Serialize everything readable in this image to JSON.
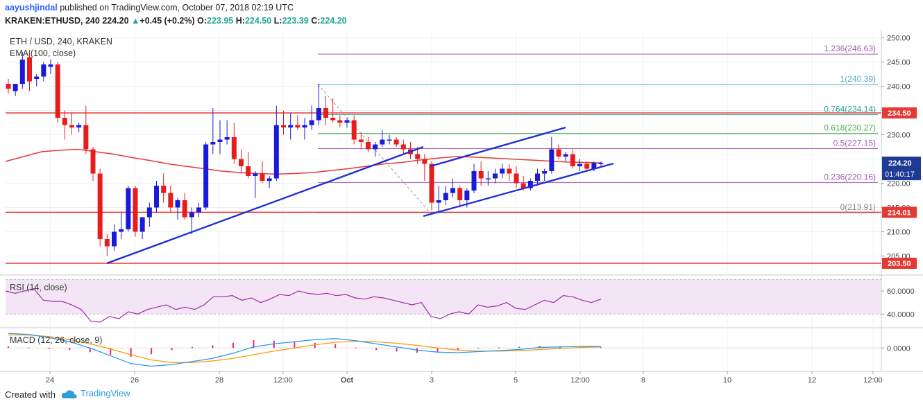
{
  "header": {
    "author": "aayushjindal",
    "published_text": " published on TradingView.com, October 07, 2018 02:19 UTC",
    "symbol_line": "KRAKEN:ETHUSD, 240",
    "last": "224.20",
    "change_arrow": "▲",
    "change": "+0.45 (+0.2%)",
    "o_label": "O:",
    "o_value": "223.95",
    "h_label": "H:",
    "h_value": "224.50",
    "l_label": "L:",
    "l_value": "223.39",
    "c_label": "C:",
    "c_value": "224.20"
  },
  "legend": {
    "main": "ETH / USD, 240, KRAKEN",
    "ema": "EMA (100, close)",
    "rsi": "RSI (14, close)",
    "macd": "MACD (12, 26, close, 9)"
  },
  "footer": {
    "created_with": "Created with",
    "brand": "TradingView"
  },
  "colors": {
    "up_candle": "#1a1adb",
    "down_candle": "#e81c1c",
    "ema": "#e53935",
    "trendline": "#1f2fd6",
    "support": "#e53935",
    "fib": "#a55ab4",
    "rsi": "#a02aa6",
    "rsi_band": "#f3e5f5",
    "macd": "#2196f3",
    "signal": "#ff9800",
    "hist_pos": "#e91e8c",
    "hist_neg": "#e91e8c"
  },
  "chart_data": {
    "type": "candlestick",
    "x_ticks": [
      "24",
      "26",
      "28",
      "12:00",
      "Oct",
      "3",
      "5",
      "12:00",
      "8",
      "10",
      "12",
      "12:00"
    ],
    "y_ticks": [
      "250.00",
      "245.00",
      "240.00",
      "235.00",
      "230.00",
      "225.00",
      "220.00",
      "215.00",
      "210.00",
      "205.00"
    ],
    "ylim": [
      201.5,
      251.5
    ],
    "candles": [
      [
        240.5,
        241.5,
        238.5,
        239.5
      ],
      [
        239.0,
        240.5,
        238.0,
        240.5
      ],
      [
        240.5,
        247.0,
        239.5,
        245.5
      ],
      [
        246.0,
        247.5,
        239.0,
        241.0
      ],
      [
        241.5,
        242.5,
        240.0,
        242.0
      ],
      [
        242.0,
        245.0,
        241.0,
        244.5
      ],
      [
        244.0,
        245.5,
        242.5,
        244.5
      ],
      [
        244.5,
        245.0,
        232.5,
        233.5
      ],
      [
        233.5,
        235.0,
        229.0,
        232.0
      ],
      [
        232.0,
        234.5,
        230.0,
        231.5
      ],
      [
        231.5,
        232.5,
        230.5,
        232.0
      ],
      [
        232.0,
        236.0,
        226.0,
        227.0
      ],
      [
        227.0,
        227.5,
        220.5,
        222.0
      ],
      [
        222.0,
        223.0,
        207.0,
        208.5
      ],
      [
        208.5,
        209.5,
        205.0,
        207.0
      ],
      [
        207.0,
        211.5,
        206.0,
        210.0
      ],
      [
        210.0,
        214.0,
        208.5,
        210.5
      ],
      [
        210.5,
        219.5,
        210.0,
        219.0
      ],
      [
        219.0,
        219.5,
        209.0,
        210.0
      ],
      [
        210.0,
        213.0,
        208.5,
        213.0
      ],
      [
        213.0,
        216.0,
        211.0,
        215.0
      ],
      [
        215.0,
        220.5,
        214.0,
        219.5
      ],
      [
        219.5,
        222.0,
        216.0,
        218.0
      ],
      [
        218.0,
        219.5,
        214.0,
        215.0
      ],
      [
        215.0,
        217.0,
        212.5,
        216.5
      ],
      [
        216.5,
        218.0,
        212.5,
        213.0
      ],
      [
        213.0,
        215.0,
        209.5,
        214.0
      ],
      [
        214.0,
        216.0,
        213.0,
        215.0
      ],
      [
        215.0,
        228.5,
        214.5,
        228.0
      ],
      [
        228.0,
        235.5,
        226.0,
        228.5
      ],
      [
        228.5,
        233.0,
        226.0,
        229.0
      ],
      [
        229.0,
        233.0,
        228.0,
        229.5
      ],
      [
        229.5,
        232.5,
        224.0,
        225.0
      ],
      [
        225.0,
        227.0,
        222.0,
        223.5
      ],
      [
        223.5,
        226.5,
        221.0,
        221.5
      ],
      [
        221.5,
        222.5,
        217.0,
        222.0
      ],
      [
        222.0,
        224.5,
        220.0,
        220.5
      ],
      [
        220.5,
        221.5,
        219.0,
        221.0
      ],
      [
        221.0,
        236.0,
        220.5,
        232.0
      ],
      [
        232.0,
        235.0,
        230.0,
        231.5
      ],
      [
        231.5,
        234.5,
        229.0,
        232.0
      ],
      [
        232.0,
        234.0,
        231.0,
        231.5
      ],
      [
        231.5,
        233.5,
        229.0,
        232.0
      ],
      [
        232.0,
        236.0,
        231.0,
        233.0
      ],
      [
        233.0,
        240.5,
        232.0,
        235.5
      ],
      [
        235.5,
        238.0,
        232.0,
        233.5
      ],
      [
        233.5,
        237.5,
        232.5,
        233.0
      ],
      [
        233.0,
        234.0,
        231.5,
        232.5
      ],
      [
        232.5,
        233.5,
        231.5,
        233.0
      ],
      [
        233.0,
        234.0,
        228.0,
        229.0
      ],
      [
        229.0,
        230.5,
        227.0,
        228.5
      ],
      [
        228.5,
        229.5,
        226.5,
        227.0
      ],
      [
        227.0,
        228.5,
        225.5,
        228.0
      ],
      [
        228.0,
        231.0,
        227.5,
        229.0
      ],
      [
        229.0,
        230.0,
        228.0,
        229.0
      ],
      [
        229.0,
        229.5,
        227.5,
        228.0
      ],
      [
        228.0,
        229.0,
        226.0,
        227.0
      ],
      [
        227.0,
        228.5,
        225.0,
        226.0
      ],
      [
        226.0,
        227.5,
        224.0,
        225.0
      ],
      [
        225.0,
        226.0,
        220.5,
        224.0
      ],
      [
        224.0,
        224.5,
        214.5,
        216.0
      ],
      [
        216.0,
        219.5,
        214.0,
        216.5
      ],
      [
        216.5,
        219.5,
        215.5,
        218.0
      ],
      [
        218.0,
        221.0,
        217.0,
        219.0
      ],
      [
        219.0,
        219.5,
        215.0,
        216.5
      ],
      [
        216.5,
        219.0,
        215.0,
        218.5
      ],
      [
        218.5,
        224.0,
        218.0,
        222.5
      ],
      [
        222.5,
        224.5,
        219.5,
        221.0
      ],
      [
        221.0,
        222.5,
        219.5,
        221.0
      ],
      [
        221.0,
        223.0,
        220.0,
        222.0
      ],
      [
        222.0,
        224.0,
        221.0,
        223.0
      ],
      [
        223.0,
        224.0,
        220.5,
        222.0
      ],
      [
        222.0,
        223.5,
        219.0,
        220.0
      ],
      [
        220.0,
        221.5,
        218.5,
        219.0
      ],
      [
        219.0,
        221.0,
        218.5,
        220.5
      ],
      [
        220.5,
        223.0,
        219.5,
        222.0
      ],
      [
        222.0,
        223.0,
        220.5,
        222.5
      ],
      [
        222.5,
        229.5,
        222.0,
        227.0
      ],
      [
        227.0,
        228.0,
        225.0,
        225.5
      ],
      [
        225.5,
        226.5,
        224.5,
        226.0
      ],
      [
        226.0,
        227.0,
        223.0,
        223.5
      ],
      [
        223.5,
        225.0,
        222.5,
        224.0
      ],
      [
        224.0,
        224.5,
        222.5,
        223.0
      ],
      [
        223.0,
        224.5,
        222.5,
        224.2
      ],
      [
        223.95,
        224.5,
        223.39,
        224.2
      ]
    ],
    "ema": [
      224.5,
      225.5,
      226.5,
      226.8,
      227.0,
      226.5,
      226.0,
      225.3,
      224.7,
      224.0,
      223.5,
      223.0,
      222.5,
      222.2,
      222.0,
      221.9,
      222.0,
      222.2,
      222.6,
      223.0,
      223.5,
      224.0,
      224.3,
      224.8,
      225.2,
      225.5,
      225.4,
      225.2,
      225.0,
      224.8,
      224.6,
      224.4,
      224.3,
      224.2
    ],
    "support_levels": [
      {
        "value": 234.5,
        "label": "234.50"
      },
      {
        "value": 214.01,
        "label": "214.01"
      },
      {
        "value": 203.5,
        "label": "203.50"
      }
    ],
    "fib_levels": [
      {
        "ratio": "1.236",
        "value": 246.63,
        "label": "1.236(246.63)"
      },
      {
        "ratio": "1",
        "value": 240.39,
        "label": "1(240.39)"
      },
      {
        "ratio": "0.764",
        "value": 234.14,
        "label": "0.764(234.14)"
      },
      {
        "ratio": "0.618",
        "value": 230.27,
        "label": "0.618(230.27)"
      },
      {
        "ratio": "0.5",
        "value": 227.15,
        "label": "0.5(227.15)"
      },
      {
        "ratio": "0.236",
        "value": 220.16,
        "label": "0.236(220.16)"
      },
      {
        "ratio": "0",
        "value": 213.91,
        "label": "0(213.91)"
      }
    ],
    "price_badge": {
      "value": "224.20",
      "countdown": "01:40:17"
    },
    "rsi": {
      "y_ticks": [
        "60.0000",
        "40.0000"
      ],
      "ylim": [
        30,
        72
      ],
      "band": [
        40,
        70
      ],
      "values": [
        60,
        58,
        60,
        62,
        52,
        51,
        51,
        48,
        44,
        34,
        33,
        38,
        36,
        42,
        40,
        44,
        46,
        48,
        44,
        46,
        44,
        48,
        55,
        55,
        56,
        52,
        54,
        50,
        53,
        57,
        56,
        60,
        58,
        57,
        58,
        56,
        57,
        54,
        53,
        55,
        54,
        52,
        50,
        48,
        50,
        38,
        36,
        40,
        42,
        40,
        48,
        46,
        47,
        50,
        45,
        44,
        48,
        52,
        50,
        56,
        55,
        52,
        50,
        53
      ]
    },
    "macd": {
      "y_ticks": [
        "0.0000"
      ],
      "ylim": [
        -4.5,
        3.5
      ],
      "macd": [
        2.8,
        2.6,
        2.0,
        1.2,
        0.0,
        -1.5,
        -3.0,
        -3.5,
        -3.2,
        -2.6,
        -2.0,
        -1.0,
        0.2,
        0.8,
        1.2,
        1.6,
        1.8,
        1.4,
        0.8,
        0.2,
        -0.4,
        -0.8,
        -0.9,
        -0.7,
        -0.5,
        -0.3,
        0.1,
        0.2,
        0.3,
        0.3
      ],
      "signal": [
        2.5,
        2.5,
        2.2,
        1.6,
        0.8,
        -0.2,
        -1.3,
        -2.3,
        -2.8,
        -2.8,
        -2.5,
        -2.0,
        -1.3,
        -0.6,
        0.0,
        0.6,
        1.1,
        1.3,
        1.2,
        0.9,
        0.5,
        0.0,
        -0.4,
        -0.6,
        -0.6,
        -0.5,
        -0.3,
        -0.1,
        0.1,
        0.2
      ],
      "hist": [
        0.3,
        0.1,
        -0.2,
        -0.4,
        -0.8,
        -1.3,
        -1.7,
        -1.2,
        -0.4,
        0.2,
        0.5,
        1.0,
        1.5,
        1.4,
        1.2,
        1.0,
        0.7,
        0.1,
        -0.4,
        -0.7,
        -0.9,
        -0.8,
        -0.5,
        -0.1,
        0.1,
        0.2,
        0.4,
        0.3,
        0.2,
        0.1
      ]
    }
  }
}
